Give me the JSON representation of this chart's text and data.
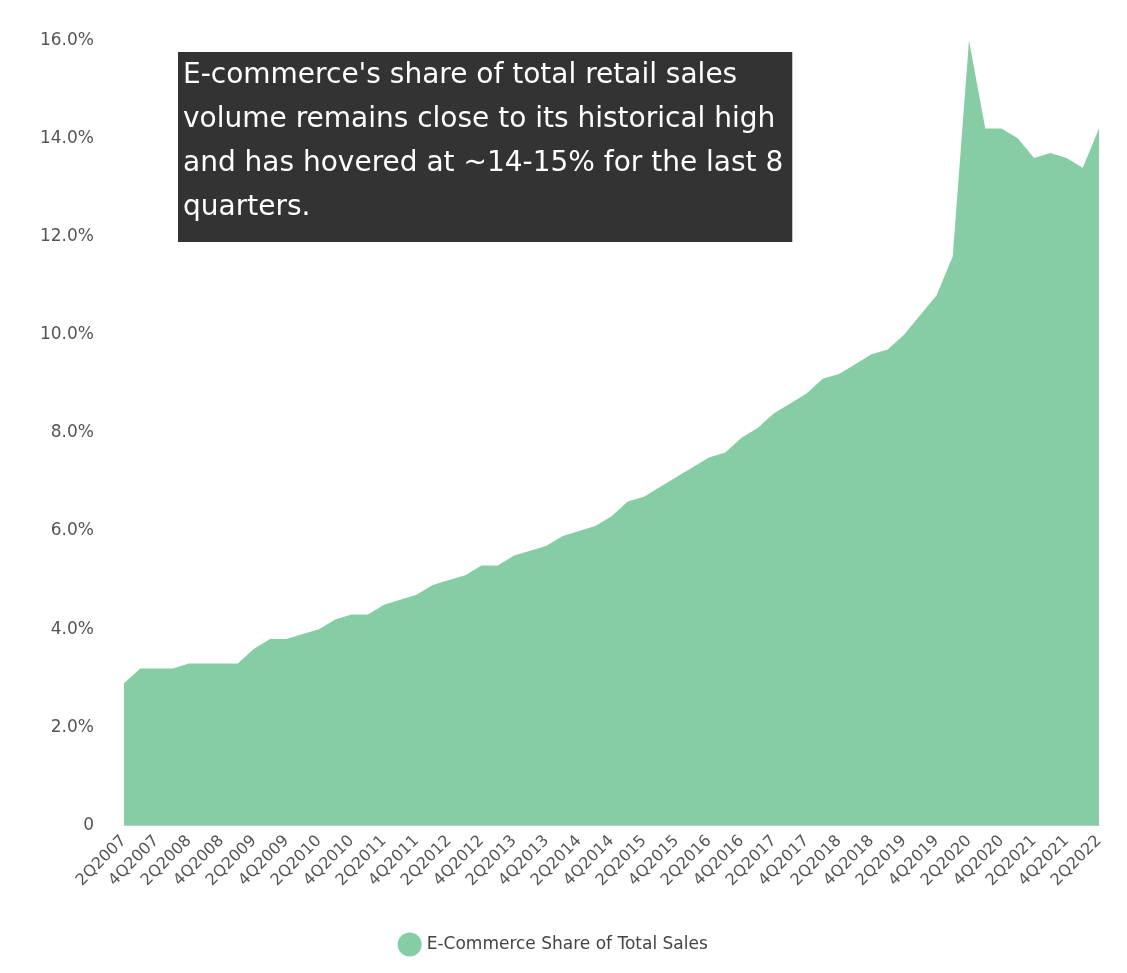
{
  "chart_data": {
    "type": "area",
    "categories": [
      "2Q2007",
      null,
      "4Q2007",
      null,
      "2Q2008",
      null,
      "4Q2008",
      null,
      "2Q2009",
      null,
      "4Q2009",
      null,
      "2Q2010",
      null,
      "4Q2010",
      null,
      "2Q2011",
      null,
      "4Q2011",
      null,
      "2Q2012",
      null,
      "4Q2012",
      null,
      "2Q2013",
      null,
      "4Q2013",
      null,
      "2Q2014",
      null,
      "4Q2014",
      null,
      "2Q2015",
      null,
      "4Q2015",
      null,
      "2Q2016",
      null,
      "4Q2016",
      null,
      "2Q2017",
      null,
      "4Q2017",
      null,
      "2Q2018",
      null,
      "4Q2018",
      null,
      "2Q2019",
      null,
      "4Q2019",
      null,
      "2Q2020",
      null,
      "4Q2020",
      null,
      "2Q2021",
      null,
      "4Q2021",
      null,
      "2Q2022"
    ],
    "series": [
      {
        "name": "E-Commerce Share of Total Sales",
        "color": "#86cda5",
        "values": [
          2.9,
          3.2,
          3.2,
          3.2,
          3.3,
          3.3,
          3.3,
          3.3,
          3.6,
          3.8,
          3.8,
          3.9,
          4.0,
          4.2,
          4.3,
          4.3,
          4.5,
          4.6,
          4.7,
          4.9,
          5.0,
          5.1,
          5.3,
          5.3,
          5.5,
          5.6,
          5.7,
          5.9,
          6.0,
          6.1,
          6.3,
          6.6,
          6.7,
          6.9,
          7.1,
          7.3,
          7.5,
          7.6,
          7.9,
          8.1,
          8.4,
          8.6,
          8.8,
          9.1,
          9.2,
          9.4,
          9.6,
          9.7,
          10.0,
          10.4,
          10.8,
          11.6,
          16.0,
          14.2,
          14.2,
          14.0,
          13.6,
          13.7,
          13.6,
          13.4,
          14.2
        ]
      }
    ],
    "ylim": [
      0,
      16
    ],
    "yticks": [
      0,
      {
        "value": 2,
        "label": "2.0%"
      },
      {
        "value": 4,
        "label": "4.0%"
      },
      {
        "value": 6,
        "label": "6.0%"
      },
      {
        "value": 8,
        "label": "8.0%"
      },
      {
        "value": 10,
        "label": "10.0%"
      },
      {
        "value": 12,
        "label": "12.0%"
      },
      {
        "value": 14,
        "label": "14.0%"
      },
      {
        "value": 16,
        "label": "16.0%"
      }
    ],
    "grid": false,
    "legend": "bottom",
    "marker": "none",
    "annotations": [
      "E-commerce's share of total retail sales volume remains close to its historical high and has hovered at ~14-15% for the last 8 quarters."
    ]
  }
}
